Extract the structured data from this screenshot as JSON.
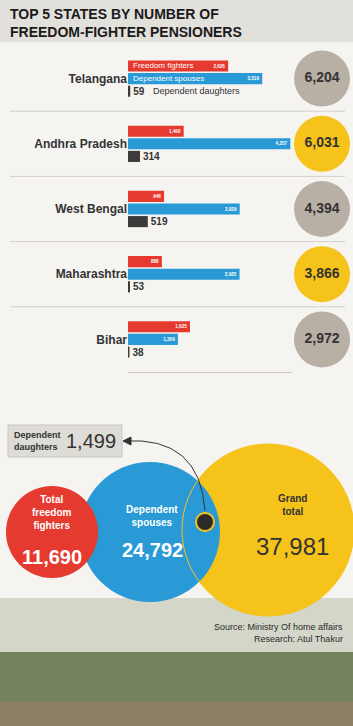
{
  "title": "TOP 5 STATES BY NUMBER OF FREEDOM-FIGHTER PENSIONERS",
  "source": "Source: Ministry Of home affairs",
  "research": "Research: Atul Thakur",
  "chart_data": [
    {
      "type": "bar",
      "orientation": "horizontal",
      "categories": [
        "Telangana",
        "Andhra Pradesh",
        "West Bengal",
        "Maharashtra",
        "Bihar"
      ],
      "series": [
        {
          "name": "Freedom fighters",
          "color": "#e53a2f",
          "values": [
            2626,
            1460,
            946,
            888,
            1625
          ],
          "value_labels": [
            "2,626",
            "1,460",
            "946",
            "888",
            "1,625"
          ]
        },
        {
          "name": "Dependent spouses",
          "color": "#2a9ad6",
          "values": [
            3519,
            4257,
            2929,
            2925,
            1309
          ],
          "value_labels": [
            "3,519",
            "4,257",
            "2,929",
            "2,925",
            "1,309"
          ]
        },
        {
          "name": "Dependent daughters",
          "color": "#3b3b3b",
          "values": [
            59,
            314,
            519,
            53,
            38
          ]
        }
      ],
      "xlim": [
        0,
        4300
      ],
      "data_labels": true,
      "tick_labels": "y"
    },
    {
      "type": "bubble",
      "categories": [
        "Telangana",
        "Andhra Pradesh",
        "West Bengal",
        "Maharashtra",
        "Bihar"
      ],
      "values": [
        6204,
        6031,
        4394,
        3866,
        2972
      ],
      "value_labels": [
        "6,204",
        "6,031",
        "4,394",
        "3,866",
        "2,972"
      ],
      "colors": [
        "#b8afa5",
        "#f6c31b",
        "#b8afa5",
        "#f6c31b",
        "#b8afa5"
      ],
      "data_labels": true
    },
    {
      "type": "venn",
      "categories": [
        "Total freedom fighters",
        "Dependent spouses",
        "Dependent daughters",
        "Grand total"
      ],
      "values": [
        11690,
        24792,
        1499,
        37981
      ],
      "value_labels": [
        "11,690",
        "24,792",
        "1,499",
        "37,981"
      ],
      "colors": [
        "#e53a2f",
        "#2a9ad6",
        "#2b2b2b",
        "#f6c31b"
      ],
      "data_labels": true
    }
  ]
}
